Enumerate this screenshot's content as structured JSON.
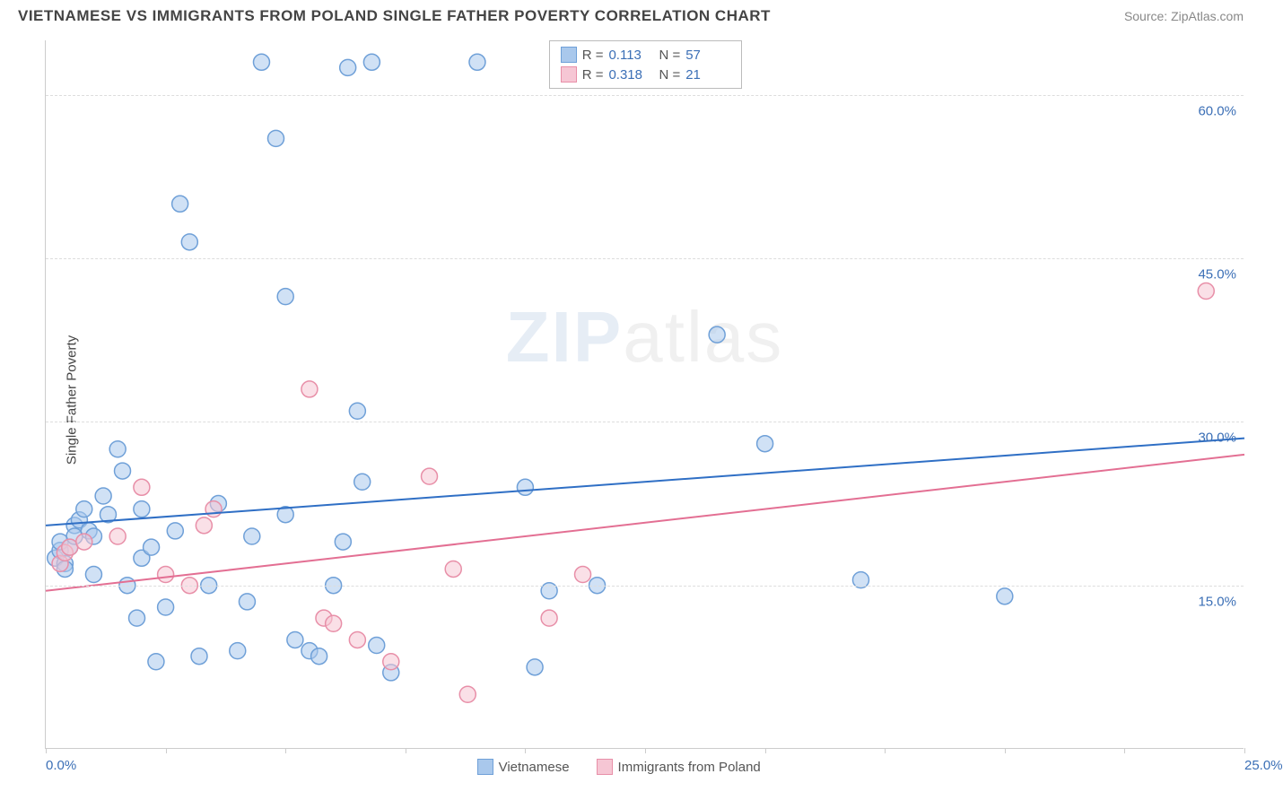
{
  "header": {
    "title": "VIETNAMESE VS IMMIGRANTS FROM POLAND SINGLE FATHER POVERTY CORRELATION CHART",
    "source": "Source: ZipAtlas.com"
  },
  "ylabel": "Single Father Poverty",
  "watermark": {
    "bold": "ZIP",
    "thin": "atlas"
  },
  "chart": {
    "type": "scatter",
    "xlim": [
      0,
      25
    ],
    "ylim": [
      0,
      65
    ],
    "xticks": [
      0,
      2.5,
      5,
      7.5,
      10,
      12.5,
      15,
      17.5,
      20,
      22.5,
      25
    ],
    "xtick_labels_visible": {
      "0": "0.0%",
      "25": "25.0%"
    },
    "yticks": [
      15,
      30,
      45,
      60
    ],
    "ytick_labels": [
      "15.0%",
      "30.0%",
      "45.0%",
      "60.0%"
    ],
    "background_color": "#ffffff",
    "grid_color": "#dddddd",
    "marker_radius": 9,
    "marker_stroke_width": 1.5,
    "line_width": 2,
    "series": [
      {
        "name": "Vietnamese",
        "fill_color": "#a9c8ec",
        "stroke_color": "#6fa0d8",
        "line_color": "#2f6fc5",
        "R": "0.113",
        "N": "57",
        "trend": {
          "x1": 0,
          "y1": 20.5,
          "x2": 25,
          "y2": 28.5
        },
        "points": [
          [
            0.2,
            17.5
          ],
          [
            0.3,
            18.2
          ],
          [
            0.3,
            19.0
          ],
          [
            0.4,
            17.0
          ],
          [
            0.4,
            16.5
          ],
          [
            0.5,
            18.5
          ],
          [
            0.6,
            20.5
          ],
          [
            0.6,
            19.5
          ],
          [
            0.7,
            21.0
          ],
          [
            0.8,
            22.0
          ],
          [
            0.9,
            20.0
          ],
          [
            1.0,
            16.0
          ],
          [
            1.0,
            19.5
          ],
          [
            1.2,
            23.2
          ],
          [
            1.3,
            21.5
          ],
          [
            1.5,
            27.5
          ],
          [
            1.6,
            25.5
          ],
          [
            1.7,
            15.0
          ],
          [
            1.9,
            12.0
          ],
          [
            2.0,
            17.5
          ],
          [
            2.0,
            22.0
          ],
          [
            2.2,
            18.5
          ],
          [
            2.3,
            8.0
          ],
          [
            2.5,
            13.0
          ],
          [
            2.7,
            20.0
          ],
          [
            2.8,
            50.0
          ],
          [
            3.0,
            46.5
          ],
          [
            3.2,
            8.5
          ],
          [
            3.4,
            15.0
          ],
          [
            3.6,
            22.5
          ],
          [
            4.0,
            9.0
          ],
          [
            4.2,
            13.5
          ],
          [
            4.5,
            63.0
          ],
          [
            4.8,
            56.0
          ],
          [
            5.0,
            41.5
          ],
          [
            5.2,
            10.0
          ],
          [
            5.5,
            9.0
          ],
          [
            5.7,
            8.5
          ],
          [
            6.0,
            15.0
          ],
          [
            6.3,
            62.5
          ],
          [
            6.5,
            31.0
          ],
          [
            6.6,
            24.5
          ],
          [
            6.8,
            63.0
          ],
          [
            6.9,
            9.5
          ],
          [
            7.2,
            7.0
          ],
          [
            9.0,
            63.0
          ],
          [
            10.0,
            24.0
          ],
          [
            10.2,
            7.5
          ],
          [
            10.5,
            14.5
          ],
          [
            11.5,
            15.0
          ],
          [
            14.0,
            38.0
          ],
          [
            15.0,
            28.0
          ],
          [
            17.0,
            15.5
          ],
          [
            20.0,
            14.0
          ],
          [
            4.3,
            19.5
          ],
          [
            5.0,
            21.5
          ],
          [
            6.2,
            19.0
          ]
        ]
      },
      {
        "name": "Immigrants from Poland",
        "fill_color": "#f6c6d4",
        "stroke_color": "#e88fa8",
        "line_color": "#e36f93",
        "R": "0.318",
        "N": "21",
        "trend": {
          "x1": 0,
          "y1": 14.5,
          "x2": 25,
          "y2": 27.0
        },
        "points": [
          [
            0.3,
            17.0
          ],
          [
            0.4,
            18.0
          ],
          [
            0.5,
            18.5
          ],
          [
            0.8,
            19.0
          ],
          [
            1.5,
            19.5
          ],
          [
            2.0,
            24.0
          ],
          [
            2.5,
            16.0
          ],
          [
            3.0,
            15.0
          ],
          [
            3.3,
            20.5
          ],
          [
            3.5,
            22.0
          ],
          [
            5.5,
            33.0
          ],
          [
            5.8,
            12.0
          ],
          [
            6.0,
            11.5
          ],
          [
            6.5,
            10.0
          ],
          [
            7.2,
            8.0
          ],
          [
            8.0,
            25.0
          ],
          [
            8.5,
            16.5
          ],
          [
            8.8,
            5.0
          ],
          [
            10.5,
            12.0
          ],
          [
            11.2,
            16.0
          ],
          [
            24.2,
            42.0
          ]
        ]
      }
    ]
  },
  "stats_legend": {
    "rows": [
      {
        "swatch_fill": "#a9c8ec",
        "swatch_stroke": "#6fa0d8",
        "r_label": "R  =",
        "r_val": "0.113",
        "n_label": "N  =",
        "n_val": "57"
      },
      {
        "swatch_fill": "#f6c6d4",
        "swatch_stroke": "#e88fa8",
        "r_label": "R  =",
        "r_val": "0.318",
        "n_label": "N  =",
        "n_val": "21"
      }
    ]
  },
  "bottom_legend": {
    "items": [
      {
        "swatch_fill": "#a9c8ec",
        "swatch_stroke": "#6fa0d8",
        "label": "Vietnamese"
      },
      {
        "swatch_fill": "#f6c6d4",
        "swatch_stroke": "#e88fa8",
        "label": "Immigrants from Poland"
      }
    ]
  }
}
